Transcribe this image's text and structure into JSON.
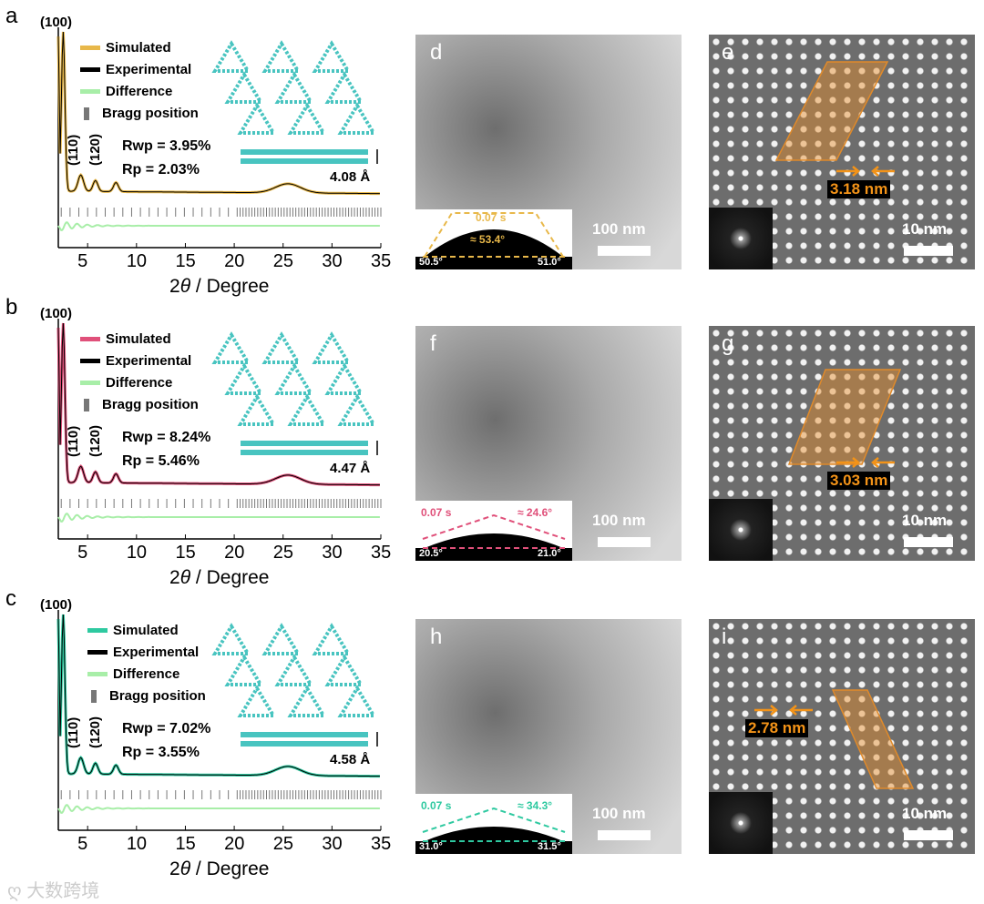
{
  "panels": [
    {
      "letter": "a",
      "peak100": "(100)",
      "peak110": "(110)",
      "peak120": "(120)",
      "legend": [
        "Simulated",
        "Experimental",
        "Difference",
        "Bragg position"
      ],
      "rwp": "Rwp = 3.95%",
      "rp": "Rp = 2.03%",
      "spacing": "4.08 Å",
      "color": "#e8b84a"
    },
    {
      "letter": "b",
      "peak100": "(100)",
      "peak110": "(110)",
      "peak120": "(120)",
      "legend": [
        "Simulated",
        "Experimental",
        "Difference",
        "Bragg position"
      ],
      "rwp": "Rwp = 8.24%",
      "rp": "Rp = 5.46%",
      "spacing": "4.47 Å",
      "color": "#e0507a"
    },
    {
      "letter": "c",
      "peak100": "(100)",
      "peak110": "(110)",
      "peak120": "(120)",
      "legend": [
        "Simulated",
        "Experimental",
        "Difference",
        "Bragg position"
      ],
      "rwp": "Rwp = 7.02%",
      "rp": "Rp = 3.55%",
      "spacing": "4.58 Å",
      "color": "#2ec9a0"
    }
  ],
  "x_ticks": [
    "5",
    "10",
    "15",
    "20",
    "25",
    "30",
    "35"
  ],
  "x_label_parts": [
    "2",
    "θ",
    " / Degree"
  ],
  "tem": [
    {
      "letter": "d",
      "scale": "100 nm",
      "contact_time": "0.07 s",
      "angle": "≈ 53.4°",
      "left_angle": "50.5°",
      "right_angle": "51.0°",
      "color": "#e8b84a"
    },
    {
      "letter": "f",
      "scale": "100 nm",
      "contact_time": "0.07 s",
      "angle": "≈ 24.6°",
      "left_angle": "20.5°",
      "right_angle": "21.0°",
      "color": "#e0507a"
    },
    {
      "letter": "h",
      "scale": "100 nm",
      "contact_time": "0.07 s",
      "angle": "≈ 34.3°",
      "left_angle": "31.0°",
      "right_angle": "31.5°",
      "color": "#2ec9a0"
    }
  ],
  "hrtem": [
    {
      "letter": "e",
      "scale": "10 nm",
      "measure": "3.18 nm"
    },
    {
      "letter": "g",
      "scale": "10 nm",
      "measure": "3.03 nm"
    },
    {
      "letter": "i",
      "scale": "10 nm",
      "measure": "2.78 nm"
    }
  ],
  "watermark": "大数跨境",
  "colors": {
    "experimental": "#000000",
    "difference": "#a8eea8",
    "bragg": "#777777",
    "accent": "#f39318"
  }
}
